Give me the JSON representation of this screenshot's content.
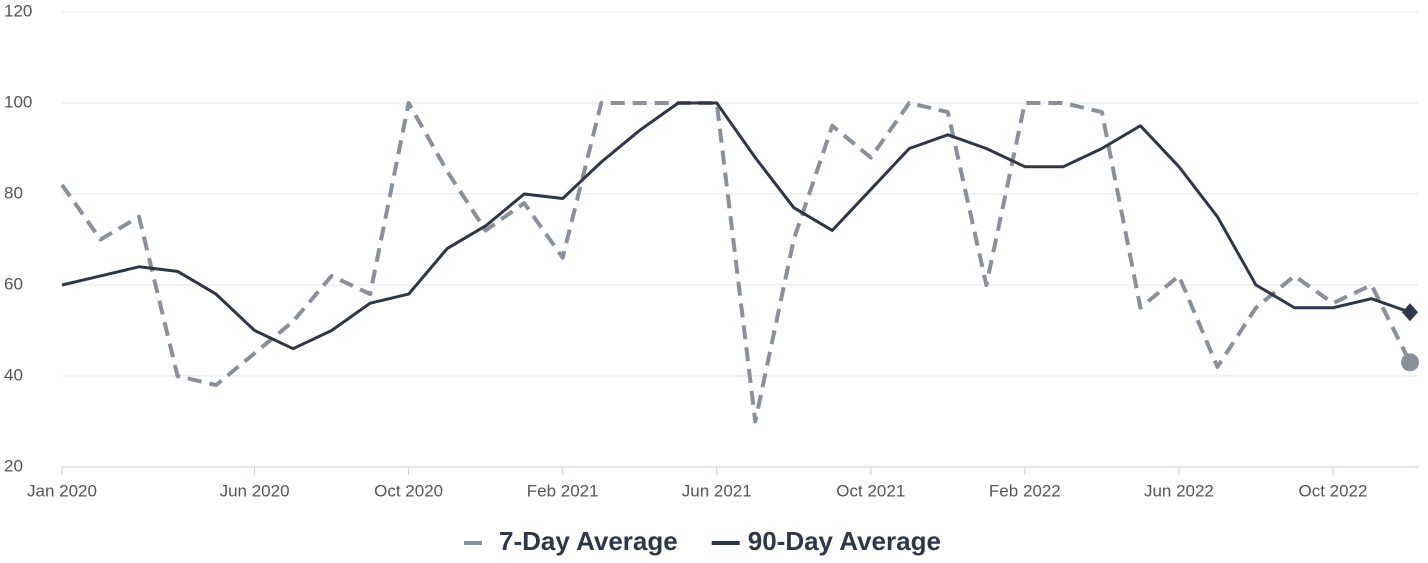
{
  "chart_data": {
    "type": "line",
    "x": [
      "2020-01",
      "2020-02",
      "2020-03",
      "2020-04",
      "2020-05",
      "2020-06",
      "2020-07",
      "2020-08",
      "2020-09",
      "2020-10",
      "2020-11",
      "2020-12",
      "2021-01",
      "2021-02",
      "2021-03",
      "2021-04",
      "2021-05",
      "2021-06",
      "2021-07",
      "2021-08",
      "2021-09",
      "2021-10",
      "2021-11",
      "2021-12",
      "2022-01",
      "2022-02",
      "2022-03",
      "2022-04",
      "2022-05",
      "2022-06",
      "2022-07",
      "2022-08",
      "2022-09",
      "2022-10",
      "2022-11",
      "2022-12"
    ],
    "series": [
      {
        "name": "7-Day Average",
        "color": "#8a9099",
        "dash": true,
        "values": [
          82,
          70,
          75,
          40,
          38,
          45,
          52,
          62,
          58,
          100,
          85,
          72,
          78,
          66,
          100,
          100,
          100,
          100,
          30,
          70,
          95,
          88,
          100,
          98,
          60,
          100,
          100,
          98,
          55,
          62,
          42,
          55,
          62,
          56,
          60,
          43
        ]
      },
      {
        "name": "90-Day Average",
        "color": "#2d3748",
        "dash": false,
        "values": [
          60,
          62,
          64,
          63,
          58,
          50,
          46,
          50,
          56,
          58,
          68,
          73,
          80,
          79,
          87,
          94,
          100,
          100,
          88,
          77,
          72,
          81,
          90,
          93,
          90,
          86,
          86,
          90,
          95,
          86,
          75,
          60,
          55,
          55,
          57,
          54
        ]
      }
    ],
    "xlim": [
      "2020-01",
      "2022-12"
    ],
    "xticks": [
      {
        "value": "2020-01",
        "label": "Jan 2020"
      },
      {
        "value": "2020-06",
        "label": "Jun 2020"
      },
      {
        "value": "2020-10",
        "label": "Oct 2020"
      },
      {
        "value": "2021-02",
        "label": "Feb 2021"
      },
      {
        "value": "2021-06",
        "label": "Jun 2021"
      },
      {
        "value": "2021-10",
        "label": "Oct 2021"
      },
      {
        "value": "2022-02",
        "label": "Feb 2022"
      },
      {
        "value": "2022-06",
        "label": "Jun 2022"
      },
      {
        "value": "2022-10",
        "label": "Oct 2022"
      }
    ],
    "ylim": [
      20,
      120
    ],
    "yticks": [
      20,
      40,
      60,
      80,
      100,
      120
    ],
    "grid": true,
    "legend": "bottom"
  }
}
